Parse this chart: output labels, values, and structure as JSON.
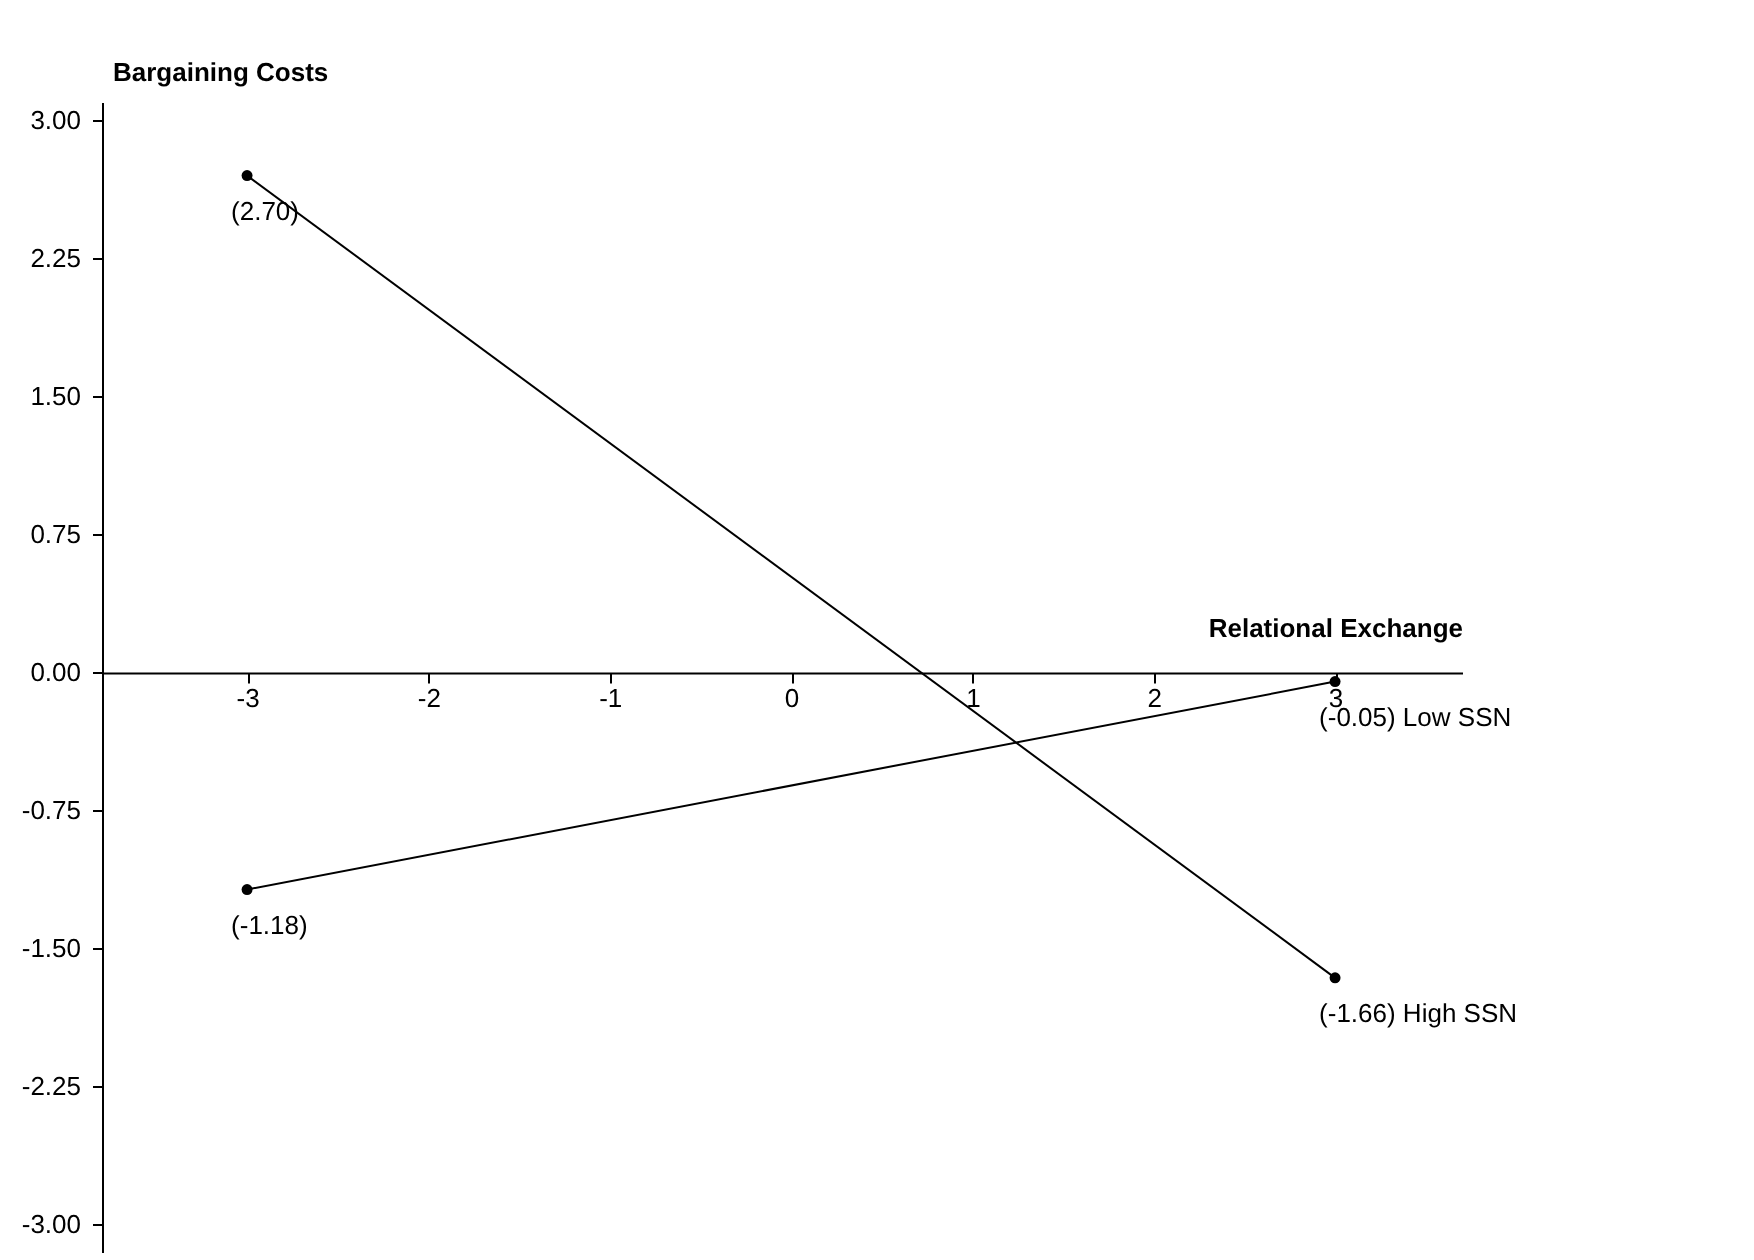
{
  "chart_data": {
    "type": "line",
    "xlabel": "Relational Exchange",
    "ylabel": "Bargaining Costs",
    "x": [
      -3,
      3
    ],
    "series": [
      {
        "name": "High SSN",
        "color": "#000000",
        "values": [
          2.7,
          -1.66
        ],
        "value_labels": [
          "(2.70)",
          "(-1.66)"
        ]
      },
      {
        "name": "Low SSN",
        "color": "#000000",
        "values": [
          -1.18,
          -0.05
        ],
        "value_labels": [
          "(-1.18)",
          "(-0.05)"
        ]
      }
    ],
    "xlim": [
      -3.8,
      3.7
    ],
    "xticks": [
      -3,
      -2,
      -1,
      0,
      1,
      2,
      3
    ],
    "ylim": [
      -3.15,
      3.1
    ],
    "yticks": [
      {
        "value": -3,
        "label": "-3.00"
      },
      {
        "value": -2.25,
        "label": "-2.25"
      },
      {
        "value": -1.5,
        "label": "-1.50"
      },
      {
        "value": -0.75,
        "label": "-0.75"
      },
      {
        "value": 0,
        "label": "0.00"
      },
      {
        "value": 0.75,
        "label": "0.75"
      },
      {
        "value": 1.5,
        "label": "1.50"
      },
      {
        "value": 2.25,
        "label": "2.25"
      },
      {
        "value": 3,
        "label": "3.00"
      }
    ],
    "marker": "circle",
    "line_style": "solid",
    "grid": false
  }
}
